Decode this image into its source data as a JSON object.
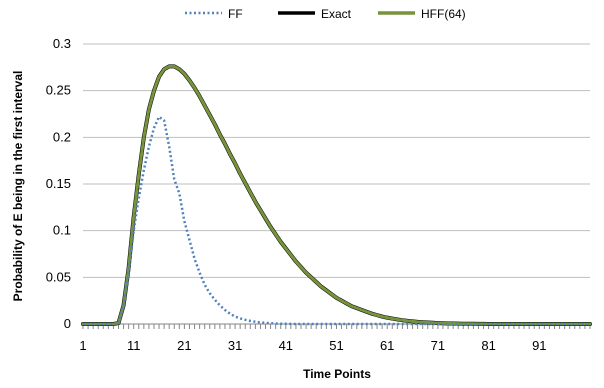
{
  "chart_data": {
    "type": "line",
    "title": "",
    "xlabel": "Time Points",
    "ylabel": "Probability of  E being in the first interval",
    "xlim": [
      1,
      101
    ],
    "ylim": [
      0,
      0.3
    ],
    "x_ticks": [
      "1",
      "11",
      "21",
      "31",
      "41",
      "51",
      "61",
      "71",
      "81",
      "91"
    ],
    "y_ticks": [
      "0",
      "0.05",
      "0.1",
      "0.15",
      "0.2",
      "0.25",
      "0.3"
    ],
    "grid": "horizontal",
    "legend_position": "top",
    "series": [
      {
        "name": "FF",
        "color": "#4F81BD",
        "style": "dotted",
        "x": [
          1,
          2,
          3,
          4,
          5,
          6,
          7,
          8,
          9,
          10,
          11,
          12,
          13,
          14,
          15,
          16,
          17,
          18,
          19,
          20,
          21,
          22,
          23,
          24,
          25,
          26,
          27,
          28,
          29,
          30,
          31,
          32,
          33,
          34,
          35,
          36,
          37,
          38,
          39,
          40,
          41,
          42,
          43,
          44,
          45,
          46,
          47,
          48,
          49,
          50,
          51,
          52,
          53,
          54,
          55,
          56,
          57,
          58,
          59,
          60,
          61,
          62,
          63,
          64,
          65,
          66,
          67,
          68,
          69,
          70,
          71,
          72,
          73,
          74,
          75,
          76,
          77,
          78,
          79,
          80,
          81,
          82,
          83,
          84,
          85,
          86,
          87,
          88,
          89,
          90,
          91,
          92,
          93,
          94,
          95,
          96,
          97,
          98,
          99,
          100,
          101
        ],
        "values": [
          0,
          0,
          0,
          0,
          0,
          0,
          0,
          0.001,
          0.02,
          0.055,
          0.1,
          0.135,
          0.165,
          0.19,
          0.21,
          0.222,
          0.218,
          0.19,
          0.155,
          0.14,
          0.11,
          0.09,
          0.07,
          0.055,
          0.042,
          0.033,
          0.026,
          0.02,
          0.015,
          0.011,
          0.008,
          0.006,
          0.0045,
          0.0033,
          0.0024,
          0.0017,
          0.0012,
          0.0008,
          0.0005,
          0.0003,
          0.0002,
          0.0001,
          0,
          0,
          0,
          0,
          0,
          0,
          0,
          0,
          0,
          0,
          0,
          0,
          0,
          0,
          0,
          0,
          0,
          0,
          0,
          0,
          0,
          0,
          0,
          0,
          0,
          0,
          0,
          0,
          0,
          0,
          0,
          0,
          0,
          0,
          0,
          0,
          0,
          0,
          0,
          0,
          0,
          0,
          0,
          0,
          0,
          0,
          0,
          0,
          0,
          0,
          0,
          0,
          0,
          0,
          0,
          0,
          0,
          0,
          0
        ]
      },
      {
        "name": "Exact",
        "color": "#000000",
        "style": "solid",
        "x": [
          1,
          2,
          3,
          4,
          5,
          6,
          7,
          8,
          9,
          10,
          11,
          12,
          13,
          14,
          15,
          16,
          17,
          18,
          19,
          20,
          21,
          22,
          23,
          24,
          25,
          26,
          27,
          28,
          29,
          30,
          31,
          32,
          33,
          34,
          35,
          36,
          37,
          38,
          39,
          40,
          41,
          42,
          43,
          44,
          45,
          46,
          47,
          48,
          49,
          50,
          51,
          52,
          53,
          54,
          55,
          56,
          57,
          58,
          59,
          60,
          61,
          62,
          63,
          64,
          65,
          66,
          67,
          68,
          69,
          70,
          71,
          72,
          73,
          74,
          75,
          76,
          77,
          78,
          79,
          80,
          81,
          82,
          83,
          84,
          85,
          86,
          87,
          88,
          89,
          90,
          91,
          92,
          93,
          94,
          95,
          96,
          97,
          98,
          99,
          100,
          101
        ],
        "values": [
          0,
          0,
          0,
          0,
          0,
          0,
          0,
          0.001,
          0.02,
          0.06,
          0.115,
          0.16,
          0.2,
          0.23,
          0.25,
          0.265,
          0.273,
          0.276,
          0.276,
          0.273,
          0.268,
          0.261,
          0.253,
          0.244,
          0.234,
          0.224,
          0.214,
          0.203,
          0.193,
          0.182,
          0.172,
          0.161,
          0.151,
          0.141,
          0.131,
          0.122,
          0.113,
          0.104,
          0.096,
          0.088,
          0.081,
          0.074,
          0.067,
          0.061,
          0.055,
          0.05,
          0.045,
          0.04,
          0.036,
          0.032,
          0.028,
          0.025,
          0.022,
          0.019,
          0.017,
          0.015,
          0.013,
          0.011,
          0.0095,
          0.008,
          0.0068,
          0.0058,
          0.0049,
          0.0041,
          0.0034,
          0.0028,
          0.0023,
          0.0019,
          0.0016,
          0.0013,
          0.001,
          0.0008,
          0.0006,
          0.0005,
          0.0004,
          0.0003,
          0.0002,
          0.0002,
          0.0001,
          0.0001,
          0,
          0,
          0,
          0,
          0,
          0,
          0,
          0,
          0,
          0,
          0,
          0,
          0,
          0,
          0,
          0,
          0,
          0,
          0,
          0,
          0
        ]
      },
      {
        "name": "HFF(64)",
        "color": "#77933C",
        "style": "solid",
        "x": [
          1,
          2,
          3,
          4,
          5,
          6,
          7,
          8,
          9,
          10,
          11,
          12,
          13,
          14,
          15,
          16,
          17,
          18,
          19,
          20,
          21,
          22,
          23,
          24,
          25,
          26,
          27,
          28,
          29,
          30,
          31,
          32,
          33,
          34,
          35,
          36,
          37,
          38,
          39,
          40,
          41,
          42,
          43,
          44,
          45,
          46,
          47,
          48,
          49,
          50,
          51,
          52,
          53,
          54,
          55,
          56,
          57,
          58,
          59,
          60,
          61,
          62,
          63,
          64,
          65,
          66,
          67,
          68,
          69,
          70,
          71,
          72,
          73,
          74,
          75,
          76,
          77,
          78,
          79,
          80,
          81,
          82,
          83,
          84,
          85,
          86,
          87,
          88,
          89,
          90,
          91,
          92,
          93,
          94,
          95,
          96,
          97,
          98,
          99,
          100,
          101
        ],
        "values": [
          0,
          0,
          0,
          0,
          0,
          0,
          0,
          0.001,
          0.02,
          0.06,
          0.115,
          0.16,
          0.2,
          0.23,
          0.25,
          0.265,
          0.273,
          0.276,
          0.276,
          0.273,
          0.268,
          0.261,
          0.253,
          0.244,
          0.234,
          0.224,
          0.214,
          0.203,
          0.193,
          0.182,
          0.172,
          0.161,
          0.151,
          0.141,
          0.131,
          0.122,
          0.113,
          0.104,
          0.096,
          0.088,
          0.081,
          0.074,
          0.067,
          0.061,
          0.055,
          0.05,
          0.045,
          0.04,
          0.036,
          0.032,
          0.028,
          0.025,
          0.022,
          0.019,
          0.017,
          0.015,
          0.013,
          0.011,
          0.0095,
          0.008,
          0.0068,
          0.0058,
          0.0049,
          0.0041,
          0.0034,
          0.0028,
          0.0023,
          0.0019,
          0.0016,
          0.0013,
          0.001,
          0.0008,
          0.0006,
          0.0005,
          0.0004,
          0.0003,
          0.0002,
          0.0002,
          0.0001,
          0.0001,
          0,
          0,
          0,
          0,
          0,
          0,
          0,
          0,
          0,
          0,
          0,
          0,
          0,
          0,
          0,
          0,
          0,
          0,
          0,
          0,
          0
        ]
      }
    ]
  }
}
